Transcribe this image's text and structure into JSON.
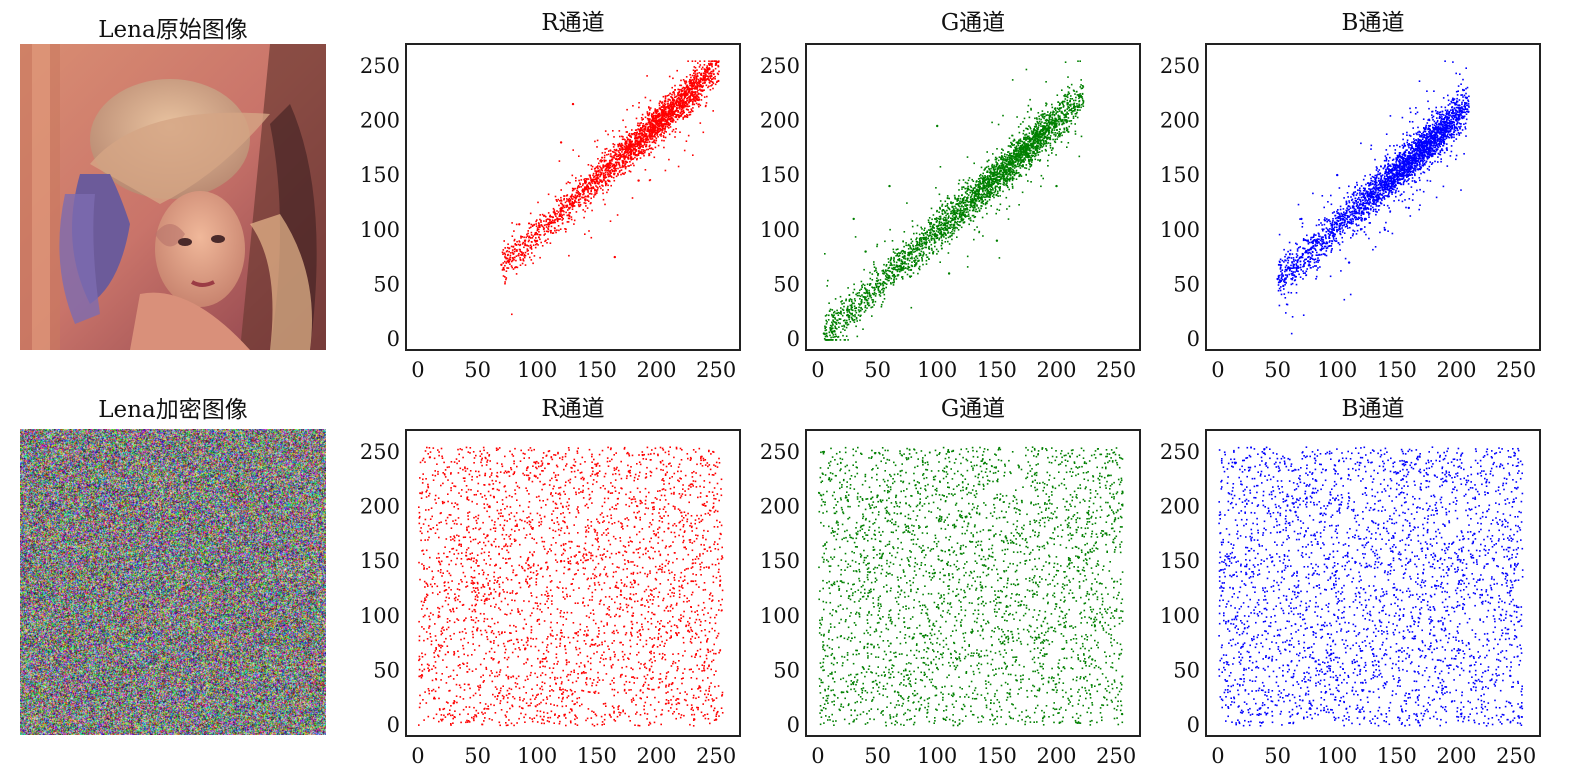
{
  "images": {
    "original_title": "Lena原始图像",
    "encrypted_title": "Lena加密图像"
  },
  "chart_data": [
    {
      "type": "scatter",
      "title": "R通道",
      "color": "#ff0000",
      "xticks": [
        0,
        50,
        100,
        150,
        200,
        250
      ],
      "yticks": [
        0,
        50,
        100,
        150,
        200,
        250
      ],
      "xlim": [
        -10,
        270
      ],
      "ylim": [
        -10,
        270
      ],
      "pattern": "correlated",
      "points": [
        [
          70,
          68
        ],
        [
          80,
          78
        ],
        [
          90,
          86
        ],
        [
          100,
          96
        ],
        [
          110,
          105
        ],
        [
          120,
          118
        ],
        [
          130,
          124
        ],
        [
          140,
          138
        ],
        [
          150,
          150
        ],
        [
          160,
          160
        ],
        [
          170,
          168
        ],
        [
          180,
          178
        ],
        [
          190,
          186
        ],
        [
          200,
          198
        ],
        [
          210,
          206
        ],
        [
          220,
          218
        ],
        [
          230,
          226
        ],
        [
          240,
          238
        ],
        [
          250,
          252
        ],
        [
          120,
          180
        ],
        [
          130,
          215
        ],
        [
          165,
          75
        ],
        [
          85,
          105
        ],
        [
          185,
          145
        ]
      ]
    },
    {
      "type": "scatter",
      "title": "G通道",
      "color": "#008000",
      "xticks": [
        0,
        50,
        100,
        150,
        200,
        250
      ],
      "yticks": [
        0,
        50,
        100,
        150,
        200,
        250
      ],
      "xlim": [
        -10,
        270
      ],
      "ylim": [
        -10,
        270
      ],
      "pattern": "correlated",
      "points": [
        [
          5,
          5
        ],
        [
          15,
          15
        ],
        [
          25,
          22
        ],
        [
          40,
          38
        ],
        [
          55,
          52
        ],
        [
          70,
          65
        ],
        [
          85,
          82
        ],
        [
          100,
          95
        ],
        [
          115,
          110
        ],
        [
          130,
          125
        ],
        [
          145,
          140
        ],
        [
          160,
          155
        ],
        [
          175,
          170
        ],
        [
          190,
          185
        ],
        [
          205,
          200
        ],
        [
          220,
          222
        ],
        [
          30,
          110
        ],
        [
          60,
          140
        ],
        [
          110,
          60
        ],
        [
          150,
          90
        ],
        [
          100,
          195
        ],
        [
          40,
          80
        ],
        [
          200,
          140
        ]
      ]
    },
    {
      "type": "scatter",
      "title": "B通道",
      "color": "#0000ff",
      "xticks": [
        0,
        50,
        100,
        150,
        200,
        250
      ],
      "yticks": [
        0,
        50,
        100,
        150,
        200,
        250
      ],
      "xlim": [
        -10,
        270
      ],
      "ylim": [
        -10,
        270
      ],
      "pattern": "correlated",
      "points": [
        [
          50,
          55
        ],
        [
          60,
          65
        ],
        [
          70,
          75
        ],
        [
          80,
          85
        ],
        [
          90,
          95
        ],
        [
          100,
          105
        ],
        [
          110,
          112
        ],
        [
          120,
          120
        ],
        [
          130,
          130
        ],
        [
          140,
          140
        ],
        [
          150,
          150
        ],
        [
          160,
          160
        ],
        [
          170,
          170
        ],
        [
          180,
          180
        ],
        [
          190,
          190
        ],
        [
          200,
          200
        ],
        [
          210,
          208
        ],
        [
          70,
          110
        ],
        [
          110,
          70
        ],
        [
          140,
          100
        ],
        [
          100,
          150
        ],
        [
          160,
          120
        ]
      ]
    },
    {
      "type": "scatter",
      "title": "R通道",
      "color": "#ff0000",
      "xticks": [
        0,
        50,
        100,
        150,
        200,
        250
      ],
      "yticks": [
        0,
        50,
        100,
        150,
        200,
        250
      ],
      "xlim": [
        -10,
        270
      ],
      "ylim": [
        -10,
        270
      ],
      "pattern": "uniform",
      "points": [
        [
          10,
          245
        ],
        [
          60,
          200
        ],
        [
          120,
          150
        ],
        [
          180,
          100
        ],
        [
          240,
          50
        ],
        [
          30,
          20
        ],
        [
          90,
          70
        ],
        [
          150,
          230
        ],
        [
          210,
          180
        ],
        [
          250,
          5
        ]
      ]
    },
    {
      "type": "scatter",
      "title": "G通道",
      "color": "#008000",
      "xticks": [
        0,
        50,
        100,
        150,
        200,
        250
      ],
      "yticks": [
        0,
        50,
        100,
        150,
        200,
        250
      ],
      "xlim": [
        -10,
        270
      ],
      "ylim": [
        -10,
        270
      ],
      "pattern": "uniform",
      "points": [
        [
          5,
          250
        ],
        [
          50,
          210
        ],
        [
          110,
          160
        ],
        [
          170,
          110
        ],
        [
          230,
          60
        ],
        [
          20,
          30
        ],
        [
          80,
          80
        ],
        [
          140,
          240
        ],
        [
          200,
          190
        ],
        [
          255,
          10
        ]
      ]
    },
    {
      "type": "scatter",
      "title": "B通道",
      "color": "#0000ff",
      "xticks": [
        0,
        50,
        100,
        150,
        200,
        250
      ],
      "yticks": [
        0,
        50,
        100,
        150,
        200,
        250
      ],
      "xlim": [
        -10,
        270
      ],
      "ylim": [
        -10,
        270
      ],
      "pattern": "uniform",
      "points": [
        [
          15,
          240
        ],
        [
          65,
          195
        ],
        [
          125,
          145
        ],
        [
          185,
          95
        ],
        [
          245,
          45
        ],
        [
          35,
          15
        ],
        [
          95,
          65
        ],
        [
          155,
          225
        ],
        [
          215,
          175
        ],
        [
          252,
          8
        ]
      ]
    }
  ]
}
